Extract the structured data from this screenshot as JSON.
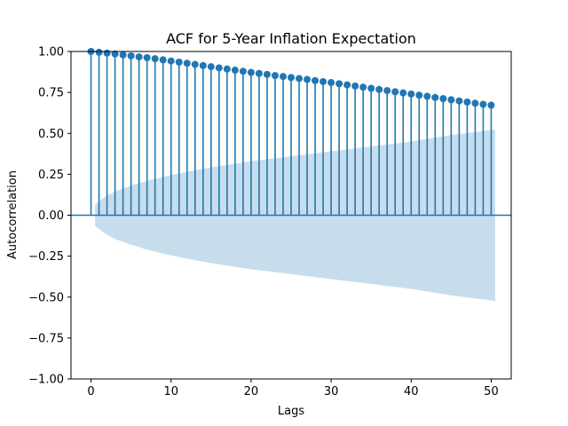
{
  "chart_data": {
    "type": "stem",
    "title": "ACF for 5-Year Inflation Expectation",
    "xlabel": "Lags",
    "ylabel": "Autocorrelation",
    "xlim": [
      -2.5,
      52.5
    ],
    "ylim": [
      -1.0,
      1.0
    ],
    "xticks": [
      0,
      10,
      20,
      30,
      40,
      50
    ],
    "yticks": [
      -1.0,
      -0.75,
      -0.5,
      -0.25,
      0.0,
      0.25,
      0.5,
      0.75,
      1.0
    ],
    "ytick_labels": [
      "−1.00",
      "−0.75",
      "−0.50",
      "−0.25",
      "0.00",
      "0.25",
      "0.50",
      "0.75",
      "1.00"
    ],
    "xtick_labels": [
      "0",
      "10",
      "20",
      "30",
      "40",
      "50"
    ],
    "colors": {
      "stem": "#1f77b4",
      "confidence_band": "#1f77b4"
    },
    "confidence_band_opacity": 0.25,
    "lags": [
      0,
      1,
      2,
      3,
      4,
      5,
      6,
      7,
      8,
      9,
      10,
      11,
      12,
      13,
      14,
      15,
      16,
      17,
      18,
      19,
      20,
      21,
      22,
      23,
      24,
      25,
      26,
      27,
      28,
      29,
      30,
      31,
      32,
      33,
      34,
      35,
      36,
      37,
      38,
      39,
      40,
      41,
      42,
      43,
      44,
      45,
      46,
      47,
      48,
      49,
      50
    ],
    "acf": [
      1.0,
      0.995,
      0.99,
      0.985,
      0.979,
      0.973,
      0.967,
      0.962,
      0.956,
      0.949,
      0.942,
      0.935,
      0.928,
      0.921,
      0.914,
      0.907,
      0.9,
      0.893,
      0.886,
      0.879,
      0.872,
      0.866,
      0.86,
      0.853,
      0.847,
      0.841,
      0.835,
      0.829,
      0.822,
      0.816,
      0.81,
      0.803,
      0.796,
      0.789,
      0.782,
      0.775,
      0.768,
      0.761,
      0.754,
      0.747,
      0.74,
      0.733,
      0.726,
      0.719,
      0.712,
      0.705,
      0.698,
      0.691,
      0.684,
      0.677,
      0.672
    ],
    "confidence_band": {
      "lags": [
        0.5,
        1,
        2,
        3,
        5,
        7,
        10,
        13,
        16,
        20,
        25,
        30,
        35,
        40,
        45,
        50,
        50.5
      ],
      "upper": [
        0.065,
        0.085,
        0.12,
        0.145,
        0.18,
        0.21,
        0.245,
        0.275,
        0.3,
        0.33,
        0.36,
        0.39,
        0.42,
        0.45,
        0.49,
        0.52,
        0.525
      ],
      "lower": [
        -0.065,
        -0.085,
        -0.12,
        -0.145,
        -0.18,
        -0.21,
        -0.245,
        -0.275,
        -0.3,
        -0.33,
        -0.36,
        -0.39,
        -0.42,
        -0.45,
        -0.49,
        -0.52,
        -0.525
      ]
    },
    "grid": false
  }
}
